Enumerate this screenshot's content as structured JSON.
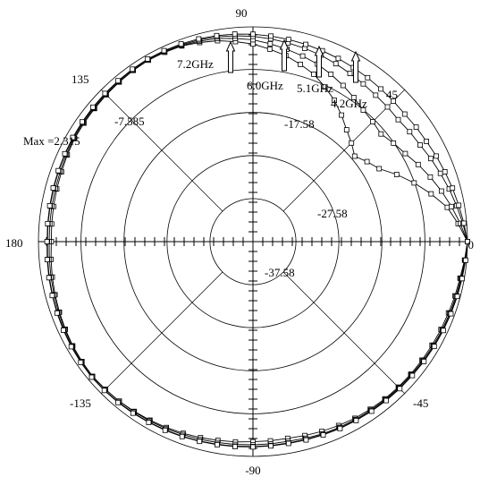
{
  "chart_data": {
    "type": "polar-line",
    "angular_ticks": [
      {
        "angle": 90,
        "label": "90"
      },
      {
        "angle": 45,
        "label": "45"
      },
      {
        "angle": 0,
        "label": "0"
      },
      {
        "angle": -45,
        "label": "-45"
      },
      {
        "angle": -90,
        "label": "-90"
      },
      {
        "angle": -135,
        "label": "-135"
      },
      {
        "angle": 180,
        "label": "180"
      },
      {
        "angle": 135,
        "label": "135"
      }
    ],
    "radial_axis": {
      "min": -47.58,
      "max": 2.315,
      "rings": [
        -37.58,
        -27.58,
        -17.58,
        -7.585,
        2.315
      ],
      "ring_labels": [
        "-37.58",
        "-27.58",
        "-17.58",
        "-7.585"
      ]
    },
    "max_label": "Max =2.315",
    "series": [
      {
        "name": "4.2GHz",
        "pattern": [
          0,
          -1,
          -1.5,
          -1.8,
          -2,
          -2.2,
          -2.5,
          -3,
          -3.5,
          -3.4,
          -3,
          -2.5,
          -2,
          -1.5,
          -1.2,
          -1.5,
          -2,
          -2.5,
          -3,
          -2.8,
          -2.5,
          -2,
          -1.8,
          -1.5,
          -1.2,
          -1.5,
          -2.5,
          -4,
          -6,
          -8.5,
          -12,
          -16,
          -19,
          -16,
          -10,
          -4
        ]
      },
      {
        "name": "5.1GHz",
        "pattern": [
          0,
          -0.8,
          -1.2,
          -1.5,
          -1.8,
          -2,
          -2.2,
          -2.4,
          -2.8,
          -2.7,
          -2.5,
          -2.2,
          -1.8,
          -1.5,
          -1.2,
          -1.4,
          -1.8,
          -2.2,
          -2.5,
          -2.4,
          -2.2,
          -1.8,
          -1.6,
          -1.4,
          -1.2,
          -1.4,
          -2,
          -3,
          -4.5,
          -6,
          -8,
          -10,
          -11,
          -9,
          -6,
          -3
        ]
      },
      {
        "name": "6.0GHz",
        "pattern": [
          0,
          -0.6,
          -1,
          -1.3,
          -1.6,
          -1.8,
          -2,
          -2.2,
          -2.4,
          -2.3,
          -2.1,
          -1.8,
          -1.5,
          -1.2,
          -1,
          -1.2,
          -1.5,
          -1.8,
          -2.1,
          -2,
          -1.8,
          -1.6,
          -1.4,
          -1.2,
          -1,
          -1.2,
          -1.6,
          -2.2,
          -3,
          -3.8,
          -4.8,
          -5.5,
          -5.8,
          -5,
          -3.5,
          -1.8
        ]
      },
      {
        "name": "7.2GHz",
        "pattern": [
          0,
          -0.5,
          -0.9,
          -1.2,
          -1.5,
          -1.7,
          -1.9,
          -2.1,
          -2.3,
          -2.2,
          -2,
          -1.7,
          -1.4,
          -1.1,
          -0.9,
          -1.1,
          -1.4,
          -1.7,
          -2,
          -1.9,
          -1.7,
          -1.5,
          -1.3,
          -1.1,
          -0.9,
          -1,
          -1.3,
          -1.7,
          -2.2,
          -2.7,
          -3.2,
          -3.6,
          -3.8,
          -3.3,
          -2.4,
          -1.3
        ]
      }
    ],
    "legend_arrows": [
      "7.2GHz",
      "6.0GHz",
      "5.1GHz",
      "4.2GHz"
    ]
  }
}
